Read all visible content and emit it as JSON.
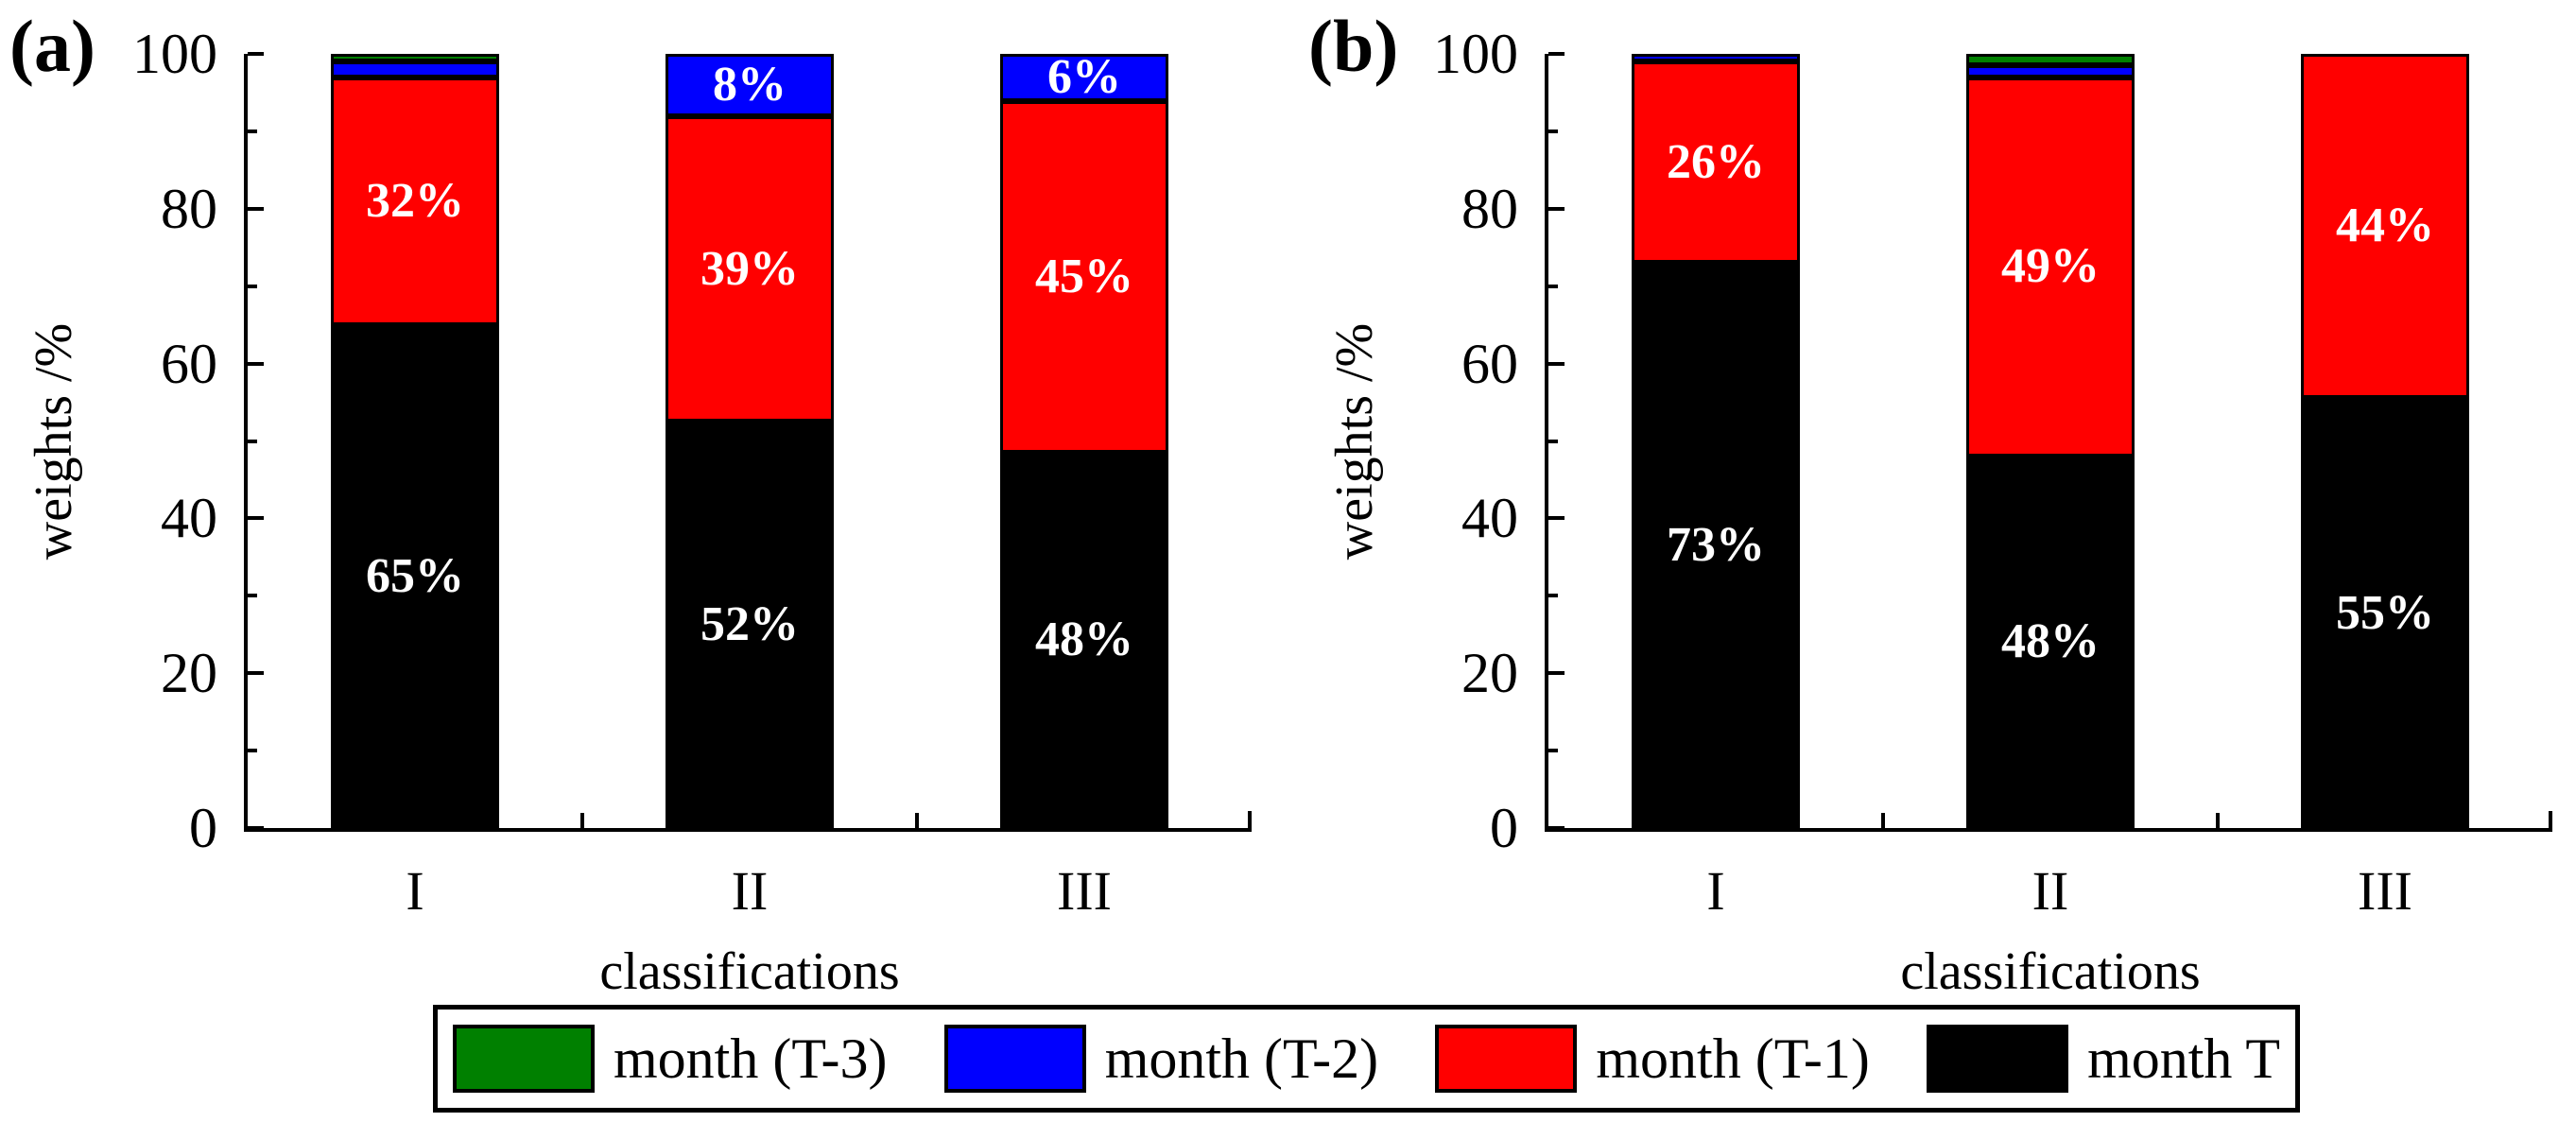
{
  "figure": {
    "panel_tags": [
      "(a)",
      "(b)"
    ],
    "legend": {
      "items": [
        {
          "label": "month (T-3)",
          "color": "#008000"
        },
        {
          "label": "month (T-2)",
          "color": "#0000ff"
        },
        {
          "label": "month (T-1)",
          "color": "#ff0000"
        },
        {
          "label": "month T",
          "color": "#000000"
        }
      ]
    }
  },
  "chart_data": [
    {
      "type": "bar",
      "stacked": true,
      "panel": "(a)",
      "title": "",
      "xlabel": "classifications",
      "ylabel": "weights /%",
      "categories": [
        "I",
        "II",
        "III"
      ],
      "ylim": [
        0,
        100
      ],
      "yticks_major": [
        0,
        20,
        40,
        60,
        80,
        100
      ],
      "yticks_minor": [
        10,
        30,
        50,
        70,
        90
      ],
      "bar_outline_color": "#000000",
      "value_label_color": "#ffffff",
      "series": [
        {
          "name": "month T",
          "color": "#000000",
          "values": [
            65,
            52,
            48
          ],
          "labels": [
            "65%",
            "52%",
            "48%"
          ]
        },
        {
          "name": "month (T-1)",
          "color": "#ff0000",
          "values": [
            32,
            39,
            45
          ],
          "labels": [
            "32%",
            "39%",
            "45%"
          ]
        },
        {
          "name": "month (T-2)",
          "color": "#0000ff",
          "values": [
            2,
            8,
            6
          ],
          "labels": [
            "",
            "8%",
            "6%"
          ]
        },
        {
          "name": "month (T-3)",
          "color": "#008000",
          "values": [
            1,
            0,
            0
          ],
          "labels": [
            "",
            "",
            ""
          ]
        }
      ]
    },
    {
      "type": "bar",
      "stacked": true,
      "panel": "(b)",
      "title": "",
      "xlabel": "classifications",
      "ylabel": "weights /%",
      "categories": [
        "I",
        "II",
        "III"
      ],
      "ylim": [
        0,
        100
      ],
      "yticks_major": [
        0,
        20,
        40,
        60,
        80,
        100
      ],
      "yticks_minor": [
        10,
        30,
        50,
        70,
        90
      ],
      "bar_outline_color": "#000000",
      "value_label_color": "#ffffff",
      "series": [
        {
          "name": "month T",
          "color": "#000000",
          "values": [
            73,
            48,
            55
          ],
          "labels": [
            "73%",
            "48%",
            "55%"
          ]
        },
        {
          "name": "month (T-1)",
          "color": "#ff0000",
          "values": [
            26,
            49,
            44
          ],
          "labels": [
            "26%",
            "49%",
            "44%"
          ]
        },
        {
          "name": "month (T-2)",
          "color": "#0000ff",
          "values": [
            1,
            1.5,
            0
          ],
          "labels": [
            "",
            "",
            ""
          ]
        },
        {
          "name": "month (T-3)",
          "color": "#008000",
          "values": [
            0,
            1.5,
            0
          ],
          "labels": [
            "",
            "",
            ""
          ]
        }
      ]
    }
  ]
}
